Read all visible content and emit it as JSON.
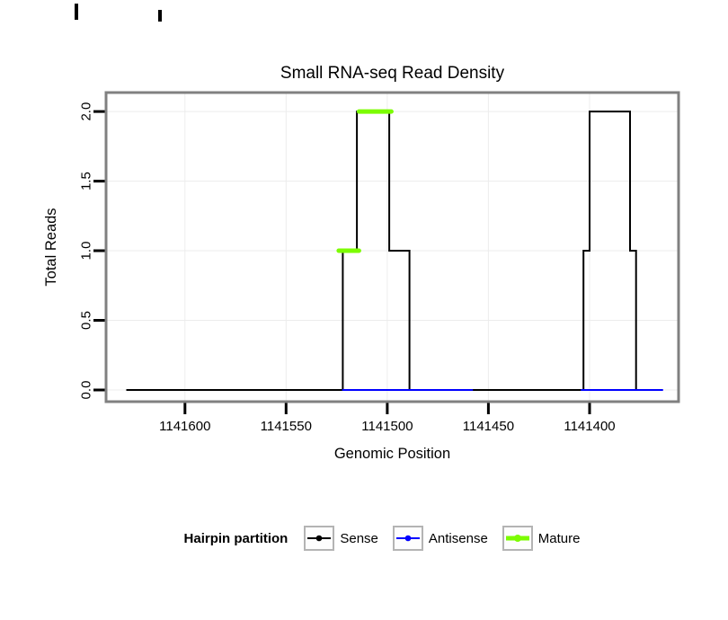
{
  "chart_data": {
    "type": "line",
    "title": "Small RNA-seq Read Density",
    "xlabel": "Genomic Position",
    "ylabel": "Total Reads",
    "x_axis_reversed": true,
    "xlim": [
      1141639,
      1141356
    ],
    "ylim": [
      -0.084,
      2.136
    ],
    "x_ticks": [
      1141600,
      1141550,
      1141500,
      1141450,
      1141400
    ],
    "x_tick_labels": [
      "1141600",
      "1141550",
      "1141500",
      "1141450",
      "1141400"
    ],
    "y_ticks": [
      0,
      0.5,
      1,
      1.5,
      2
    ],
    "y_tick_labels": [
      "0.0",
      "0.5",
      "1.0",
      "1.5",
      "2.0"
    ],
    "grid": true,
    "grid_color": "#ececec",
    "panel_border_color": "#808080",
    "legend_title": "Hairpin partition",
    "legend_position": "bottom",
    "series": [
      {
        "name": "Sense",
        "color": "#000000",
        "line_width": 2,
        "step_points": [
          [
            1141629,
            0
          ],
          [
            1141522,
            0
          ],
          [
            1141522,
            1
          ],
          [
            1141515,
            1
          ],
          [
            1141515,
            2
          ],
          [
            1141499,
            2
          ],
          [
            1141499,
            1
          ],
          [
            1141489,
            1
          ],
          [
            1141489,
            0
          ],
          [
            1141403,
            0
          ],
          [
            1141403,
            1
          ],
          [
            1141400,
            1
          ],
          [
            1141400,
            2
          ],
          [
            1141380,
            2
          ],
          [
            1141380,
            1
          ],
          [
            1141377,
            1
          ],
          [
            1141377,
            0
          ],
          [
            1141364,
            0
          ]
        ]
      },
      {
        "name": "Antisense",
        "color": "#0000ff",
        "line_width": 2,
        "segments": [
          [
            [
              1141522,
              0
            ],
            [
              1141458,
              0
            ]
          ],
          [
            [
              1141404,
              0
            ],
            [
              1141364,
              0
            ]
          ]
        ]
      },
      {
        "name": "Mature",
        "color": "#7cfc00",
        "line_width": 5,
        "segments": [
          [
            [
              1141524,
              1
            ],
            [
              1141514,
              1
            ]
          ],
          [
            [
              1141514,
              2
            ],
            [
              1141498,
              2
            ]
          ]
        ]
      }
    ]
  }
}
